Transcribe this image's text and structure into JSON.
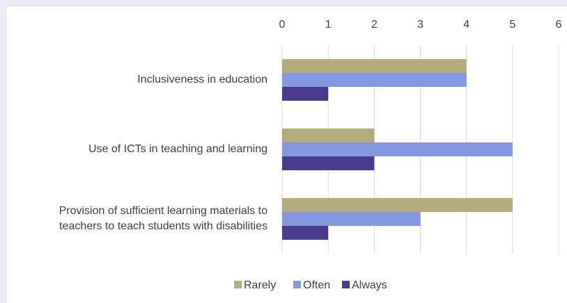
{
  "chart_data": {
    "type": "bar",
    "orientation": "horizontal",
    "categories": [
      "Inclusiveness in education",
      "Use of ICTs in teaching and learning",
      "Provision of sufficient learning materials to teachers to teach students with disabilities"
    ],
    "series": [
      {
        "name": "Rarely",
        "color": "#b5ac7d",
        "values": [
          4,
          2,
          5
        ]
      },
      {
        "name": "Often",
        "color": "#8497e0",
        "values": [
          4,
          5,
          3
        ]
      },
      {
        "name": "Always",
        "color": "#4b3b8f",
        "values": [
          1,
          2,
          1
        ]
      }
    ],
    "xlim": [
      0,
      6
    ],
    "xticks": [
      0,
      1,
      2,
      3,
      4,
      5,
      6
    ],
    "grid": true,
    "legend": "bottom"
  }
}
